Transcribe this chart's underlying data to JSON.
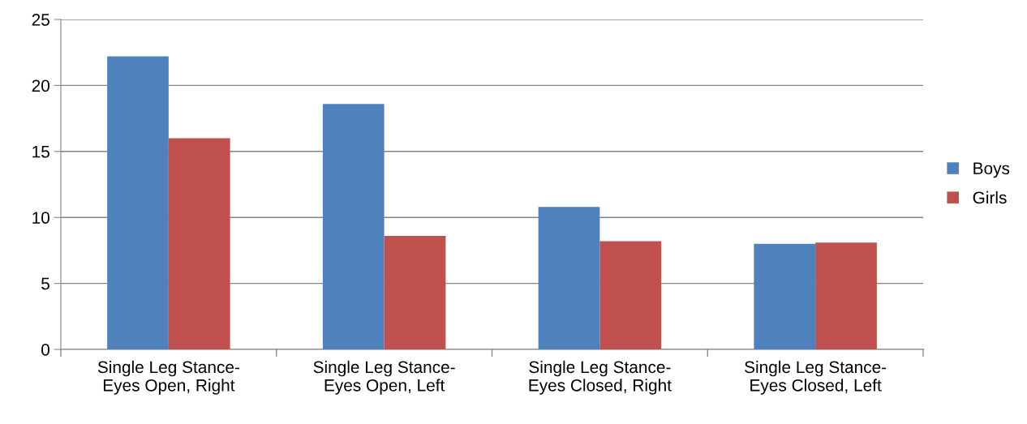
{
  "chart_data": {
    "type": "bar",
    "categories": [
      "Single Leg Stance-\nEyes Open, Right",
      "Single Leg Stance-\nEyes Open, Left",
      "Single Leg Stance-\nEyes Closed, Right",
      "Single Leg Stance-\nEyes Closed, Left"
    ],
    "series": [
      {
        "name": "Boys",
        "color": "#4f81bd",
        "values": [
          22.2,
          18.6,
          10.8,
          8.0
        ]
      },
      {
        "name": "Girls",
        "color": "#c0504d",
        "values": [
          16.0,
          8.6,
          8.2,
          8.1
        ]
      }
    ],
    "ylim": [
      0,
      25
    ],
    "yticks": [
      0,
      5,
      10,
      15,
      20,
      25
    ],
    "grid": "y",
    "legend": "right"
  }
}
